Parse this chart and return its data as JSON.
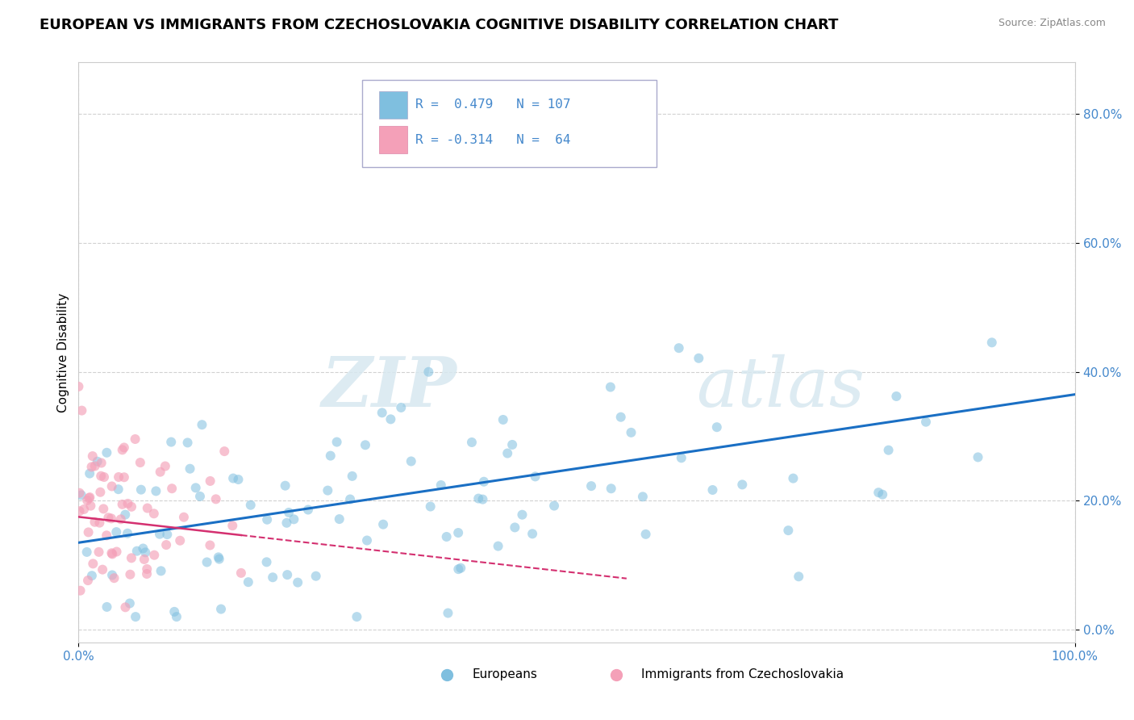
{
  "title": "EUROPEAN VS IMMIGRANTS FROM CZECHOSLOVAKIA COGNITIVE DISABILITY CORRELATION CHART",
  "source": "Source: ZipAtlas.com",
  "ylabel": "Cognitive Disability",
  "xlim": [
    0.0,
    1.0
  ],
  "ylim": [
    -0.02,
    0.88
  ],
  "yticks": [
    0.0,
    0.2,
    0.4,
    0.6,
    0.8
  ],
  "ytick_labels": [
    "0.0%",
    "20.0%",
    "40.0%",
    "60.0%",
    "80.0%"
  ],
  "xticks": [
    0.0,
    1.0
  ],
  "xtick_labels": [
    "0.0%",
    "100.0%"
  ],
  "r_european": 0.479,
  "n_european": 107,
  "r_czech": -0.314,
  "n_czech": 64,
  "color_european": "#7fbfdf",
  "color_czech": "#f4a0b8",
  "color_trendline_european": "#1a6fc4",
  "color_trendline_czech": "#d43070",
  "background_color": "#ffffff",
  "grid_color": "#cccccc",
  "watermark_zip": "ZIP",
  "watermark_atlas": "atlas",
  "title_fontsize": 13,
  "label_fontsize": 11,
  "tick_fontsize": 11,
  "tick_color": "#4488cc"
}
